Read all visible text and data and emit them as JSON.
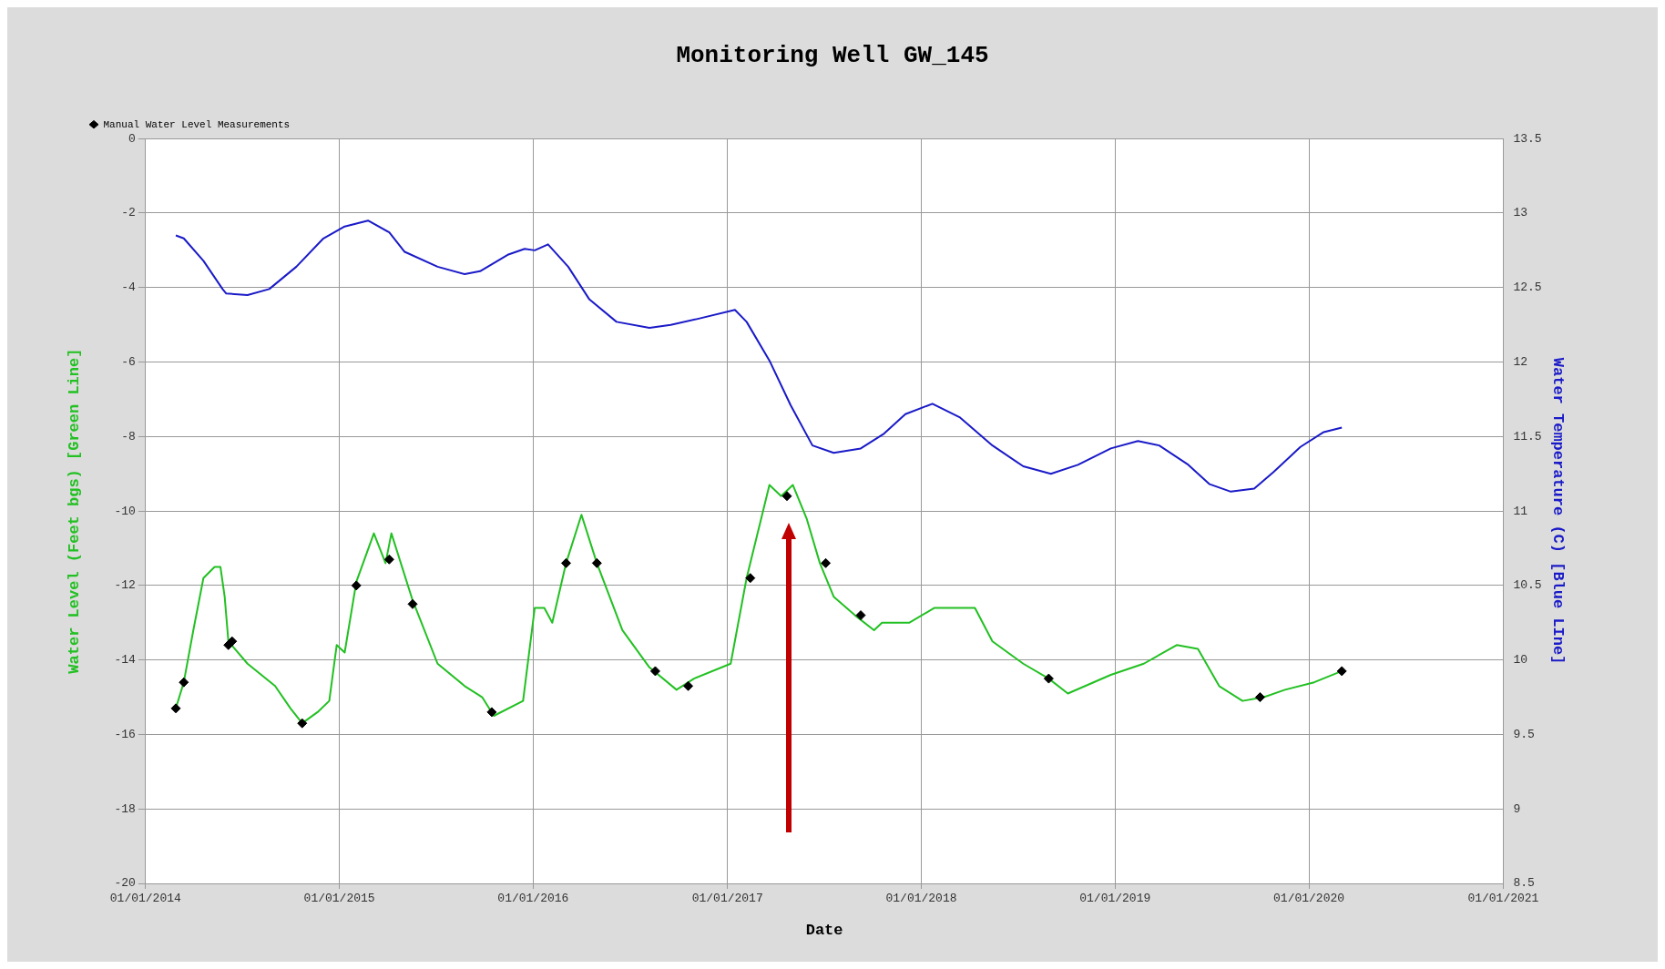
{
  "chart_data": {
    "type": "line",
    "title": "Monitoring Well GW_145",
    "xlabel": "Date",
    "ylabel": "Water Level (Feet bgs) [Green Line]",
    "y2label": "Water Temperature (C) [Blue LIne]",
    "legend": "top left",
    "grid": true,
    "xlim": [
      "2014-01-01",
      "2021-01-01"
    ],
    "xticks": [
      {
        "value": "2014-01-01",
        "label": "01/01/2014"
      },
      {
        "value": "2015-01-01",
        "label": "01/01/2015"
      },
      {
        "value": "2016-01-01",
        "label": "01/01/2016"
      },
      {
        "value": "2017-01-01",
        "label": "01/01/2017"
      },
      {
        "value": "2018-01-01",
        "label": "01/01/2018"
      },
      {
        "value": "2019-01-01",
        "label": "01/01/2019"
      },
      {
        "value": "2020-01-01",
        "label": "01/01/2020"
      },
      {
        "value": "2021-01-01",
        "label": "01/01/2021"
      }
    ],
    "ylim": [
      -20,
      0
    ],
    "yticks": [
      -20,
      -18,
      -16,
      -14,
      -12,
      -10,
      -8,
      -6,
      -4,
      -2,
      0
    ],
    "y2lim": [
      8.5,
      13.5
    ],
    "y2ticks": [
      8.5,
      9,
      9.5,
      10,
      10.5,
      11,
      11.5,
      12,
      12.5,
      13,
      13.5
    ],
    "series": [
      {
        "type": "line",
        "color": "#1a1ac8",
        "axis": "y2",
        "x": [
          "2014-02-27",
          "2014-03-14",
          "2014-04-20",
          "2014-05-26",
          "2014-06-02",
          "2014-07-12",
          "2014-08-22",
          "2014-10-12",
          "2014-12-02",
          "2015-01-11",
          "2015-02-24",
          "2015-04-05",
          "2015-05-04",
          "2015-07-05",
          "2015-08-25",
          "2015-09-23",
          "2015-11-14",
          "2015-12-16",
          "2016-01-04",
          "2016-01-29",
          "2016-03-07",
          "2016-04-16",
          "2016-06-06",
          "2016-08-07",
          "2016-09-16",
          "2016-11-06",
          "2017-01-15",
          "2017-02-06",
          "2017-03-21",
          "2017-04-30",
          "2017-06-10",
          "2017-07-20",
          "2017-09-09",
          "2017-10-23",
          "2017-12-02",
          "2018-01-22",
          "2018-03-14",
          "2018-05-15",
          "2018-07-12",
          "2018-09-02",
          "2018-10-23",
          "2018-12-24",
          "2019-02-13",
          "2019-03-25",
          "2019-05-19",
          "2019-06-28",
          "2019-08-07",
          "2019-09-20",
          "2019-10-26",
          "2019-12-16",
          "2020-01-29",
          "2020-03-03"
        ],
        "values": [
          12.85,
          12.83,
          12.68,
          12.49,
          12.46,
          12.45,
          12.49,
          12.64,
          12.83,
          12.91,
          12.95,
          12.87,
          12.74,
          12.64,
          12.59,
          12.61,
          12.72,
          12.76,
          12.75,
          12.79,
          12.64,
          12.42,
          12.27,
          12.23,
          12.25,
          12.29,
          12.35,
          12.27,
          12.01,
          11.71,
          11.44,
          11.39,
          11.42,
          11.52,
          11.65,
          11.72,
          11.63,
          11.44,
          11.3,
          11.25,
          11.31,
          11.42,
          11.47,
          11.44,
          11.31,
          11.18,
          11.13,
          11.15,
          11.26,
          11.43,
          11.53,
          11.56
        ]
      },
      {
        "type": "line",
        "color": "#22c022",
        "axis": "y",
        "x": [
          "2014-02-27",
          "2014-03-14",
          "2014-04-01",
          "2014-04-20",
          "2014-05-11",
          "2014-05-22",
          "2014-05-30",
          "2014-06-06",
          "2014-07-12",
          "2014-09-02",
          "2014-10-01",
          "2014-10-23",
          "2014-11-21",
          "2014-12-13",
          "2014-12-27",
          "2015-01-11",
          "2015-02-02",
          "2015-03-07",
          "2015-03-29",
          "2015-04-09",
          "2015-05-19",
          "2015-07-05",
          "2015-08-25",
          "2015-09-27",
          "2015-10-19",
          "2015-12-13",
          "2016-01-04",
          "2016-01-22",
          "2016-02-06",
          "2016-03-03",
          "2016-04-01",
          "2016-04-30",
          "2016-06-17",
          "2016-08-07",
          "2016-09-27",
          "2016-10-30",
          "2017-01-07",
          "2017-02-06",
          "2017-03-21",
          "2017-04-12",
          "2017-05-04",
          "2017-05-30",
          "2017-06-24",
          "2017-07-20",
          "2017-08-29",
          "2017-10-04",
          "2017-10-19",
          "2017-12-09",
          "2018-01-26",
          "2018-04-12",
          "2018-05-15",
          "2018-07-12",
          "2018-08-29",
          "2018-10-04",
          "2018-12-24",
          "2019-02-24",
          "2019-04-27",
          "2019-06-06",
          "2019-07-16",
          "2019-08-29",
          "2019-10-08",
          "2019-11-17",
          "2020-01-11",
          "2020-03-03"
        ],
        "values": [
          -15.3,
          -14.6,
          -13.2,
          -11.8,
          -11.5,
          -11.5,
          -12.3,
          -13.5,
          -14.1,
          -14.7,
          -15.3,
          -15.7,
          -15.4,
          -15.1,
          -13.6,
          -13.8,
          -11.9,
          -10.6,
          -11.4,
          -10.6,
          -12.4,
          -14.1,
          -14.7,
          -15,
          -15.5,
          -15.1,
          -12.6,
          -12.6,
          -13,
          -11.4,
          -10.1,
          -11.4,
          -13.2,
          -14.2,
          -14.8,
          -14.5,
          -14.1,
          -11.8,
          -9.3,
          -9.6,
          -9.3,
          -10.2,
          -11.4,
          -12.3,
          -12.8,
          -13.2,
          -13,
          -13,
          -12.6,
          -12.6,
          -13.5,
          -14.1,
          -14.5,
          -14.9,
          -14.4,
          -14.1,
          -13.6,
          -13.7,
          -14.7,
          -15.1,
          -15,
          -14.8,
          -14.6,
          -14.3
        ]
      },
      {
        "type": "scatter",
        "name": "Manual Water Level Measurements",
        "color": "#000000",
        "marker": "diamond",
        "axis": "y",
        "x": [
          "2014-02-27",
          "2014-03-14",
          "2014-06-06",
          "2014-06-13",
          "2014-10-23",
          "2015-02-02",
          "2015-04-05",
          "2015-05-19",
          "2015-10-15",
          "2016-03-03",
          "2016-04-30",
          "2016-08-18",
          "2016-10-19",
          "2017-02-13",
          "2017-04-23",
          "2017-07-05",
          "2017-09-09",
          "2018-08-29",
          "2019-10-01",
          "2020-03-03"
        ],
        "values": [
          -15.3,
          -14.6,
          -13.6,
          -13.5,
          -15.7,
          -12,
          -11.3,
          -12.5,
          -15.4,
          -11.4,
          -11.4,
          -14.3,
          -14.7,
          -11.8,
          -9.6,
          -11.4,
          -12.8,
          -14.5,
          -15,
          -14.3
        ]
      }
    ]
  }
}
